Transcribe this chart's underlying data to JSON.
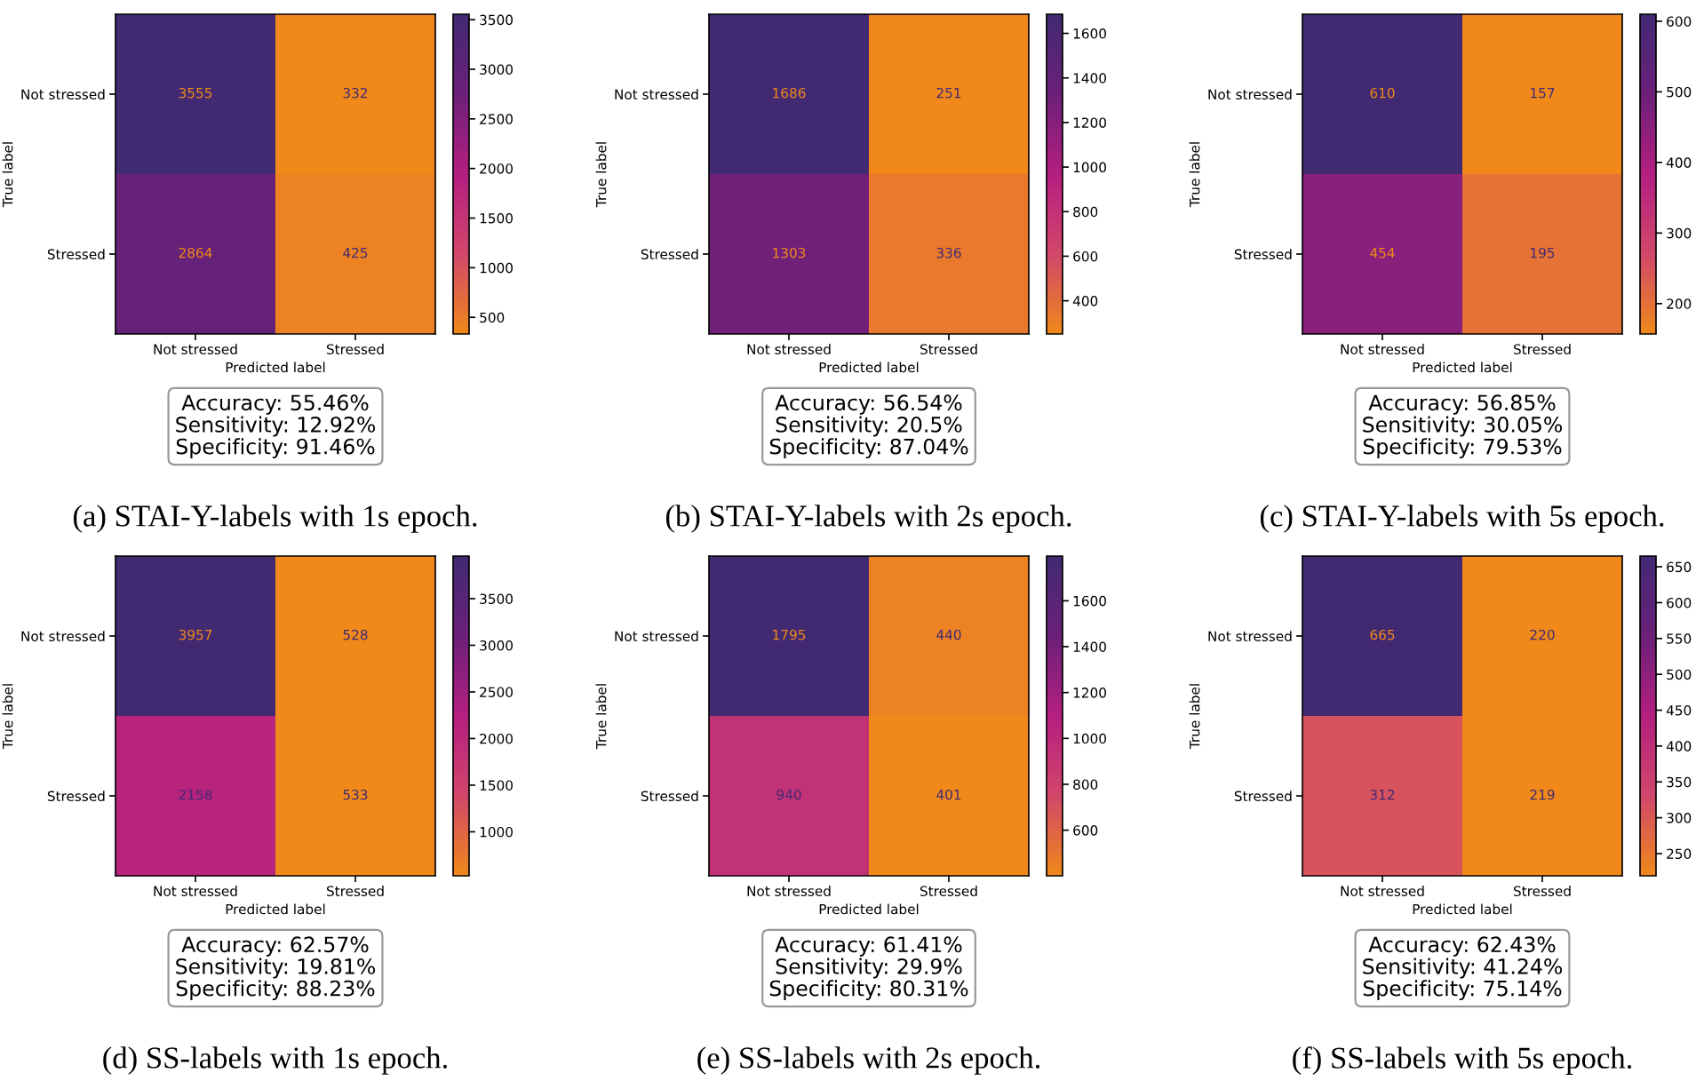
{
  "chart_data": [
    {
      "type": "heatmap",
      "title": "(a) STAI-Y-labels with 1s epoch.",
      "xlabel": "Predicted label",
      "ylabel": "True label",
      "categories": [
        "Not stressed",
        "Stressed"
      ],
      "y_categories": [
        "Not stressed",
        "Stressed"
      ],
      "cells": [
        [
          3555,
          332
        ],
        [
          2864,
          425
        ]
      ],
      "clim": [
        332,
        3555
      ],
      "cticks": [
        500,
        1000,
        1500,
        2000,
        2500,
        3000,
        3500
      ],
      "colors": [
        "#f0891a",
        "#d2476b",
        "#b51f80",
        "#6c2079",
        "#422a72"
      ],
      "data_labels": true,
      "annotations": [
        "Accuracy: 55.46%\nSensitivity: 12.92%\nSpecificity: 91.46%"
      ]
    },
    {
      "type": "heatmap",
      "title": "(b) STAI-Y-labels with 2s epoch.",
      "xlabel": "Predicted label",
      "ylabel": "True label",
      "categories": [
        "Not stressed",
        "Stressed"
      ],
      "y_categories": [
        "Not stressed",
        "Stressed"
      ],
      "cells": [
        [
          1686,
          251
        ],
        [
          1303,
          336
        ]
      ],
      "clim": [
        251,
        1686
      ],
      "cticks": [
        400,
        600,
        800,
        1000,
        1200,
        1400,
        1600
      ],
      "colors": [
        "#f0891a",
        "#d2476b",
        "#b51f80",
        "#6c2079",
        "#422a72"
      ],
      "data_labels": true,
      "annotations": [
        "Accuracy: 56.54%\nSensitivity: 20.5%\nSpecificity: 87.04%"
      ]
    },
    {
      "type": "heatmap",
      "title": "(c) STAI-Y-labels with 5s epoch.",
      "xlabel": "Predicted label",
      "ylabel": "True label",
      "categories": [
        "Not stressed",
        "Stressed"
      ],
      "y_categories": [
        "Not stressed",
        "Stressed"
      ],
      "cells": [
        [
          610,
          157
        ],
        [
          454,
          195
        ]
      ],
      "clim": [
        157,
        610
      ],
      "cticks": [
        200,
        300,
        400,
        500,
        600
      ],
      "colors": [
        "#f0891a",
        "#d2476b",
        "#b51f80",
        "#6c2079",
        "#422a72"
      ],
      "data_labels": true,
      "annotations": [
        "Accuracy: 56.85%\nSensitivity: 30.05%\nSpecificity: 79.53%"
      ]
    },
    {
      "type": "heatmap",
      "title": "(d) SS-labels with 1s epoch.",
      "xlabel": "Predicted label",
      "ylabel": "True label",
      "categories": [
        "Not stressed",
        "Stressed"
      ],
      "y_categories": [
        "Not stressed",
        "Stressed"
      ],
      "cells": [
        [
          3957,
          528
        ],
        [
          2158,
          533
        ]
      ],
      "clim": [
        528,
        3957
      ],
      "cticks": [
        1000,
        1500,
        2000,
        2500,
        3000,
        3500
      ],
      "colors": [
        "#f0891a",
        "#d2476b",
        "#b51f80",
        "#6c2079",
        "#422a72"
      ],
      "data_labels": true,
      "annotations": [
        "Accuracy: 62.57%\nSensitivity: 19.81%\nSpecificity: 88.23%"
      ]
    },
    {
      "type": "heatmap",
      "title": "(e) SS-labels with 2s epoch.",
      "xlabel": "Predicted label",
      "ylabel": "True label",
      "categories": [
        "Not stressed",
        "Stressed"
      ],
      "y_categories": [
        "Not stressed",
        "Stressed"
      ],
      "cells": [
        [
          1795,
          440
        ],
        [
          940,
          401
        ]
      ],
      "clim": [
        401,
        1795
      ],
      "cticks": [
        600,
        800,
        1000,
        1200,
        1400,
        1600
      ],
      "colors": [
        "#f0891a",
        "#d2476b",
        "#b51f80",
        "#6c2079",
        "#422a72"
      ],
      "data_labels": true,
      "annotations": [
        "Accuracy: 61.41%\nSensitivity: 29.9%\nSpecificity: 80.31%"
      ]
    },
    {
      "type": "heatmap",
      "title": "(f) SS-labels with 5s epoch.",
      "xlabel": "Predicted label",
      "ylabel": "True label",
      "categories": [
        "Not stressed",
        "Stressed"
      ],
      "y_categories": [
        "Not stressed",
        "Stressed"
      ],
      "cells": [
        [
          665,
          220
        ],
        [
          312,
          219
        ]
      ],
      "clim": [
        219,
        665
      ],
      "cticks": [
        250,
        300,
        350,
        400,
        450,
        500,
        550,
        600,
        650
      ],
      "colors": [
        "#f0891a",
        "#d2476b",
        "#b51f80",
        "#6c2079",
        "#422a72"
      ],
      "data_labels": true,
      "annotations": [
        "Accuracy: 62.43%\nSensitivity: 41.24%\nSpecificity: 75.14%"
      ]
    }
  ]
}
